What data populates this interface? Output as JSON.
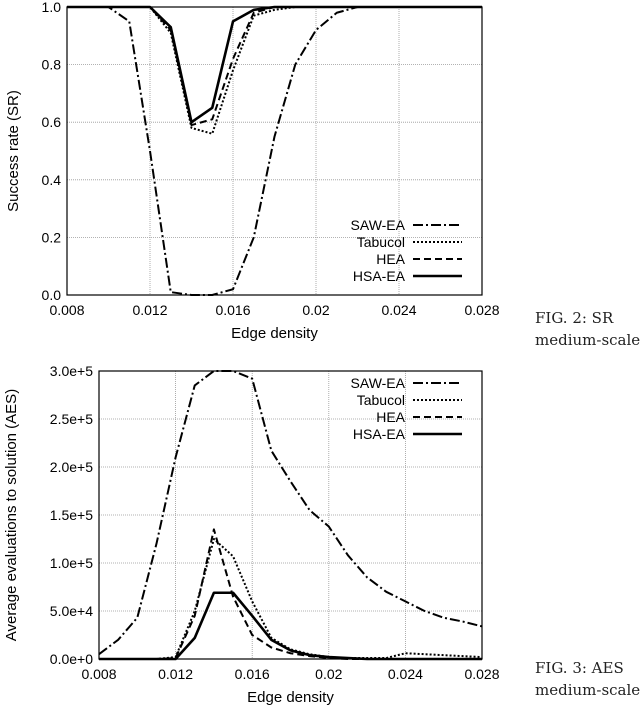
{
  "captions": [
    {
      "line1": "FIG. 2:   SR",
      "line2": "medium-scale"
    },
    {
      "line1": "FIG. 3:   AES",
      "line2": "medium-scale"
    }
  ],
  "chart_data": [
    {
      "type": "line",
      "title": "",
      "xlabel": "Edge density",
      "ylabel": "Success rate (SR)",
      "xlim": [
        0.008,
        0.028
      ],
      "ylim": [
        0,
        1
      ],
      "xticks": [
        "0.008",
        "0.012",
        "0.016",
        "0.02",
        "0.024",
        "0.028"
      ],
      "yticks": [
        "0.0",
        "0.2",
        "0.4",
        "0.6",
        "0.8",
        "1.0"
      ],
      "grid": true,
      "legend": "bottom-right",
      "x": [
        0.008,
        0.009,
        0.01,
        0.011,
        0.012,
        0.013,
        0.014,
        0.015,
        0.016,
        0.017,
        0.018,
        0.019,
        0.02,
        0.021,
        0.022,
        0.023,
        0.024,
        0.025,
        0.026,
        0.027,
        0.028
      ],
      "series": [
        {
          "name": "SAW-EA",
          "dash": "10,3,2,3",
          "values": [
            1,
            1,
            1,
            0.95,
            0.5,
            0.01,
            0,
            0,
            0.02,
            0.2,
            0.55,
            0.8,
            0.92,
            0.98,
            1,
            1,
            1,
            1,
            1,
            1,
            1
          ]
        },
        {
          "name": "Tabucol",
          "dash": "2,2",
          "values": [
            1,
            1,
            1,
            1,
            1,
            0.91,
            0.58,
            0.56,
            0.78,
            0.97,
            0.99,
            1,
            1,
            1,
            1,
            1,
            1,
            1,
            1,
            1,
            1
          ]
        },
        {
          "name": "HEA",
          "dash": "7,4",
          "values": [
            1,
            1,
            1,
            1,
            1,
            0.92,
            0.59,
            0.61,
            0.82,
            0.98,
            1,
            1,
            1,
            1,
            1,
            1,
            1,
            1,
            1,
            1,
            1
          ]
        },
        {
          "name": "HSA-EA",
          "dash": "",
          "values": [
            1,
            1,
            1,
            1,
            1,
            0.93,
            0.6,
            0.65,
            0.95,
            0.99,
            1,
            1,
            1,
            1,
            1,
            1,
            1,
            1,
            1,
            1,
            1
          ]
        }
      ]
    },
    {
      "type": "line",
      "title": "",
      "xlabel": "Edge density",
      "ylabel": "Average evaluations to solution (AES)",
      "xlim": [
        0.008,
        0.028
      ],
      "ylim": [
        0,
        300000
      ],
      "xticks": [
        "0.008",
        "0.012",
        "0.016",
        "0.02",
        "0.024",
        "0.028"
      ],
      "yticks": [
        "0.0e+0",
        "5.0e+4",
        "1.0e+5",
        "1.5e+5",
        "2.0e+5",
        "2.5e+5",
        "3.0e+5"
      ],
      "grid": true,
      "legend": "top-right",
      "x": [
        0.008,
        0.009,
        0.01,
        0.011,
        0.012,
        0.013,
        0.014,
        0.015,
        0.016,
        0.017,
        0.018,
        0.019,
        0.02,
        0.021,
        0.022,
        0.023,
        0.024,
        0.025,
        0.026,
        0.027,
        0.028
      ],
      "series": [
        {
          "name": "SAW-EA",
          "dash": "10,3,2,3",
          "values": [
            5000,
            20000,
            43000,
            120000,
            210000,
            285000,
            300000,
            300000,
            292000,
            217000,
            185000,
            155000,
            138000,
            108000,
            85000,
            70000,
            60000,
            50000,
            43000,
            39000,
            34000
          ]
        },
        {
          "name": "Tabucol",
          "dash": "2,2",
          "values": [
            0,
            0,
            0,
            0,
            2000,
            50000,
            125000,
            107000,
            60000,
            22000,
            10000,
            5000,
            2000,
            1000,
            1000,
            1000,
            6000,
            5000,
            4000,
            3000,
            2000
          ]
        },
        {
          "name": "HEA",
          "dash": "7,4",
          "values": [
            0,
            0,
            0,
            0,
            1000,
            45000,
            135000,
            65000,
            25000,
            12000,
            6000,
            3000,
            1000,
            0,
            0,
            0,
            0,
            0,
            0,
            0,
            0
          ]
        },
        {
          "name": "HSA-EA",
          "dash": "",
          "values": [
            0,
            0,
            0,
            0,
            0,
            22000,
            69000,
            69000,
            45000,
            20000,
            9000,
            4000,
            2000,
            1000,
            0,
            0,
            0,
            0,
            0,
            0,
            0
          ]
        }
      ]
    }
  ]
}
